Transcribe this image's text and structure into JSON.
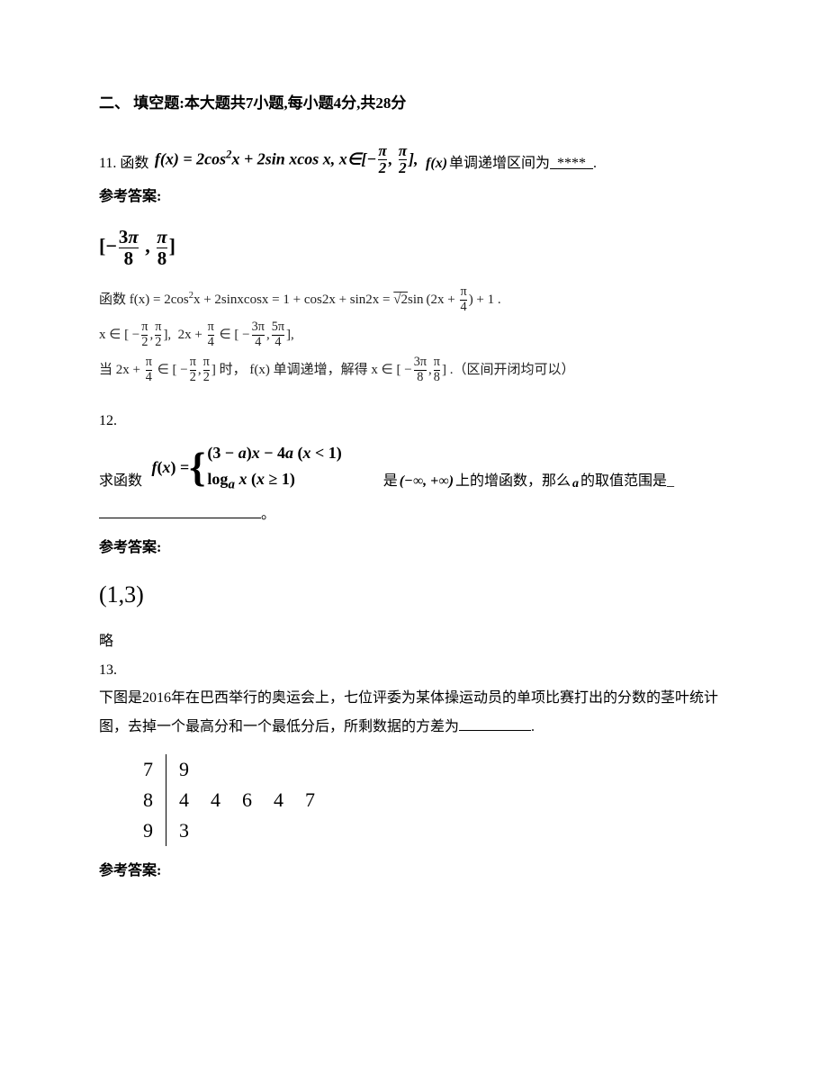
{
  "section": {
    "title": "二、 填空题:本大题共7小题,每小题4分,共28分"
  },
  "q11": {
    "num": "11.",
    "prefix": "函数",
    "expr": "f(x) = 2cos²x + 2sin x cos x, x∈[−π/2, π/2], ",
    "fx": "f(x)",
    "suffix": "单调递增区间为",
    "blank": "****",
    "period": ".",
    "answerLabel": "参考答案:",
    "answer": "[−3π/8 , π/8]",
    "explain1_pre": "函数",
    "explain1_math": "f(x) = 2cos²x + 2sinxcosx = 1 + cos2x + sin2x = √2 sin(2x + π/4) + 1",
    "explain1_post": ".",
    "explain2": "x ∈ [−π/2, π/2],  2x + π/4 ∈ [−3π/4, 5π/4],",
    "explain3_pre": "当",
    "explain3_m1": "2x + π/4 ∈ [−π/2, π/2]",
    "explain3_mid": "时，",
    "explain3_m2": "f(x)",
    "explain3_mid2": "单调递增，解得",
    "explain3_m3": "x ∈ [−3π/8, π/8]",
    "explain3_post": ".（区间开闭均可以）"
  },
  "q12": {
    "num": "12.",
    "prefix": "求函数",
    "fx": "f(x) = ",
    "piece1": "(3 − a)x − 4a (x < 1)",
    "piece2": "logₐ x (x ≥ 1)",
    "mid": "是",
    "domain": "(−∞, +∞)",
    "suffix": "上的增函数，那么",
    "avar": "a",
    "suffix2": "的取值范围是_",
    "period": "。",
    "answerLabel": "参考答案:",
    "answer": "(1,3)",
    "omit": "略"
  },
  "q13": {
    "num": "13.",
    "body": "下图是2016年在巴西举行的奥运会上，七位评委为某体操运动员的单项比赛打出的分数的茎叶统计图，去掉一个最高分和一个最低分后，所剩数据的方差为",
    "period": ".",
    "stemleaf": {
      "rows": [
        {
          "stem": "7",
          "leaves": [
            "9"
          ]
        },
        {
          "stem": "8",
          "leaves": [
            "4",
            "4",
            "6",
            "4",
            "7"
          ]
        },
        {
          "stem": "9",
          "leaves": [
            "3"
          ]
        }
      ]
    },
    "answerLabel": "参考答案:"
  }
}
